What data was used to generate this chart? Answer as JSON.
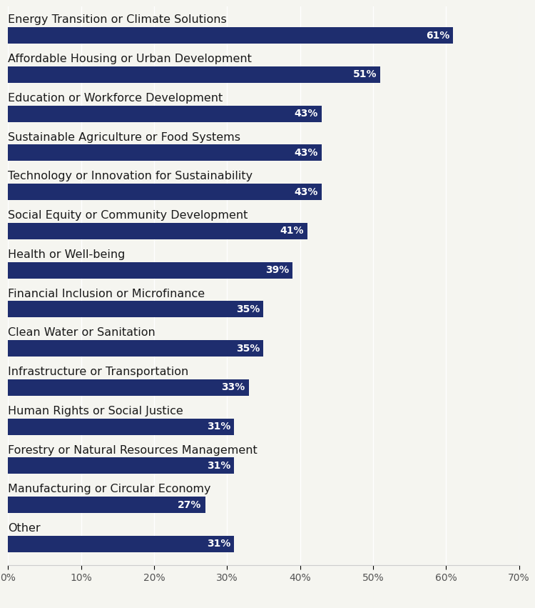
{
  "categories": [
    "Energy Transition or Climate Solutions",
    "Affordable Housing or Urban Development",
    "Education or Workforce Development",
    "Sustainable Agriculture or Food Systems",
    "Technology or Innovation for Sustainability",
    "Social Equity or Community Development",
    "Health or Well-being",
    "Financial Inclusion or Microfinance",
    "Clean Water or Sanitation",
    "Infrastructure or Transportation",
    "Human Rights or Social Justice",
    "Forestry or Natural Resources Management",
    "Manufacturing or Circular Economy",
    "Other"
  ],
  "values": [
    61,
    51,
    43,
    43,
    43,
    41,
    39,
    35,
    35,
    33,
    31,
    31,
    27,
    31
  ],
  "bar_color": "#1e2d6e",
  "label_color": "#ffffff",
  "label_fontsize": 10,
  "category_fontsize": 11.5,
  "tick_fontsize": 10,
  "bar_height": 0.42,
  "xlim": [
    0,
    70
  ],
  "xticks": [
    0,
    10,
    20,
    30,
    40,
    50,
    60,
    70
  ],
  "xtick_labels": [
    "0%",
    "10%",
    "20%",
    "30%",
    "40%",
    "50%",
    "60%",
    "70%"
  ],
  "background_color": "#f5f5f0",
  "grid_color": "#ffffff",
  "spine_color": "#cccccc"
}
